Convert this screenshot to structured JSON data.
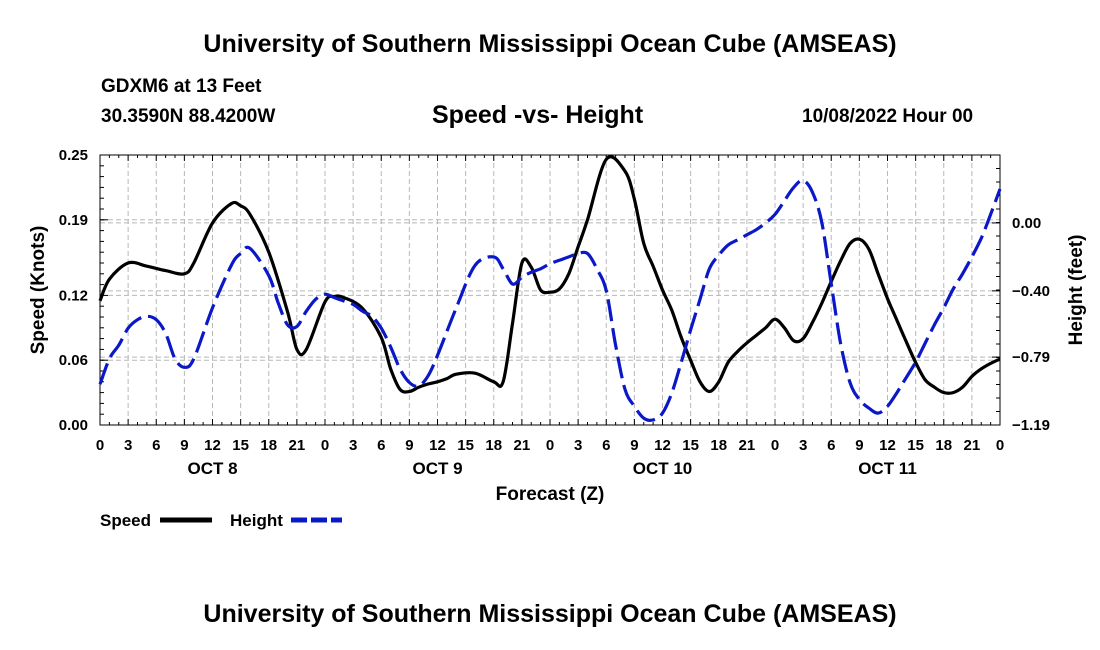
{
  "header": {
    "title": "University of Southern Mississippi Ocean Cube (AMSEAS)",
    "station": "GDXM6 at 13 Feet",
    "coords": "30.3590N  88.4200W",
    "subtitle": "Speed -vs- Height",
    "datetime": "10/08/2022 Hour 00"
  },
  "footer": {
    "title": "University of Southern Mississippi Ocean Cube (AMSEAS)"
  },
  "chart_data": {
    "type": "line",
    "title": "Speed -vs- Height",
    "xlabel": "Forecast (Z)",
    "ylabel": "Speed (Knots)",
    "y2label": "Height (feet)",
    "x_unit": "hours from 10/08/2022 00Z",
    "xlim": [
      0,
      96
    ],
    "ylim": [
      0,
      0.25
    ],
    "y2lim": [
      -1.19,
      0.4
    ],
    "grid": true,
    "x_ticks": [
      0,
      3,
      6,
      9,
      12,
      15,
      18,
      21,
      24,
      27,
      30,
      33,
      36,
      39,
      42,
      45,
      48,
      51,
      54,
      57,
      60,
      63,
      66,
      69,
      72,
      75,
      78,
      81,
      84,
      87,
      90,
      93,
      96
    ],
    "x_tick_labels": [
      "0",
      "3",
      "6",
      "9",
      "12",
      "15",
      "18",
      "21",
      "0",
      "3",
      "6",
      "9",
      "12",
      "15",
      "18",
      "21",
      "0",
      "3",
      "6",
      "9",
      "12",
      "15",
      "18",
      "21",
      "0",
      "3",
      "6",
      "9",
      "12",
      "15",
      "18",
      "21",
      "0"
    ],
    "day_labels": [
      {
        "label": "OCT 8",
        "hour": 12
      },
      {
        "label": "OCT 9",
        "hour": 36
      },
      {
        "label": "OCT 10",
        "hour": 60
      },
      {
        "label": "OCT 11",
        "hour": 84
      }
    ],
    "y_ticks": [
      0.0,
      0.06,
      0.12,
      0.19,
      0.25
    ],
    "y_tick_labels": [
      "0.00",
      "0.06",
      "0.12",
      "0.19",
      "0.25"
    ],
    "y2_ticks": [
      0.0,
      -0.4,
      -0.79,
      -1.19
    ],
    "y2_tick_labels": [
      "0.00",
      "−0.40",
      "−0.79",
      "−1.19"
    ],
    "legend": [
      {
        "label": "Speed",
        "color": "#000000",
        "dash": "solid"
      },
      {
        "label": "Height",
        "color": "#0b18c8",
        "dash": "dashed"
      }
    ],
    "legend_placement": "bottom-left",
    "series": [
      {
        "name": "Speed",
        "axis": "left",
        "color": "#000000",
        "dash": "solid",
        "x": [
          0,
          1,
          3,
          5,
          7,
          9,
          10,
          12,
          14,
          15,
          16,
          18,
          20,
          21,
          22,
          24,
          25,
          26,
          28,
          30,
          31,
          32,
          33,
          34,
          35,
          36,
          37,
          38,
          40,
          42,
          43,
          44,
          45,
          46,
          47,
          48,
          49,
          50,
          51,
          52,
          54,
          56,
          57,
          58,
          59,
          60,
          61,
          62,
          63,
          64,
          65,
          66,
          67,
          68,
          69,
          70,
          71,
          72,
          73,
          74,
          75,
          76,
          77,
          78,
          79,
          80,
          81,
          82,
          83,
          84,
          85,
          86,
          87,
          88,
          89,
          90,
          91,
          92,
          93,
          94,
          95,
          96
        ],
        "values": [
          0.115,
          0.135,
          0.15,
          0.147,
          0.143,
          0.14,
          0.15,
          0.187,
          0.205,
          0.203,
          0.195,
          0.16,
          0.105,
          0.07,
          0.07,
          0.114,
          0.119,
          0.118,
          0.108,
          0.081,
          0.052,
          0.033,
          0.031,
          0.035,
          0.038,
          0.04,
          0.043,
          0.047,
          0.048,
          0.04,
          0.04,
          0.094,
          0.15,
          0.146,
          0.125,
          0.123,
          0.126,
          0.14,
          0.165,
          0.19,
          0.246,
          0.235,
          0.209,
          0.168,
          0.147,
          0.125,
          0.106,
          0.081,
          0.06,
          0.04,
          0.031,
          0.04,
          0.058,
          0.068,
          0.076,
          0.083,
          0.09,
          0.098,
          0.09,
          0.078,
          0.08,
          0.095,
          0.113,
          0.133,
          0.152,
          0.168,
          0.172,
          0.163,
          0.14,
          0.117,
          0.097,
          0.077,
          0.058,
          0.042,
          0.035,
          0.03,
          0.03,
          0.035,
          0.045,
          0.052,
          0.057,
          0.061
        ]
      },
      {
        "name": "Height",
        "axis": "right",
        "color": "#0b18c8",
        "dash": "dashed",
        "x": [
          0,
          1,
          2,
          3,
          4,
          5,
          6,
          7,
          8,
          9,
          10,
          12,
          14,
          15,
          16,
          18,
          19,
          20,
          21,
          22,
          23,
          24,
          25,
          26,
          27,
          28,
          29,
          30,
          31,
          32,
          33,
          34,
          35,
          36,
          38,
          40,
          42,
          43,
          44,
          45,
          46,
          47,
          48,
          49,
          50,
          51,
          52,
          53,
          54,
          55,
          56,
          57,
          58,
          59,
          60,
          61,
          62,
          63,
          64,
          65,
          66,
          67,
          68,
          69,
          70,
          71,
          72,
          73,
          74,
          75,
          76,
          77,
          78,
          79,
          80,
          81,
          82,
          83,
          84,
          85,
          86,
          87,
          88,
          89,
          90,
          91,
          92,
          93,
          94,
          95,
          96
        ],
        "values": [
          -0.95,
          -0.8,
          -0.72,
          -0.62,
          -0.57,
          -0.55,
          -0.57,
          -0.65,
          -0.8,
          -0.85,
          -0.8,
          -0.5,
          -0.25,
          -0.18,
          -0.15,
          -0.31,
          -0.47,
          -0.6,
          -0.61,
          -0.52,
          -0.45,
          -0.42,
          -0.44,
          -0.46,
          -0.48,
          -0.52,
          -0.55,
          -0.62,
          -0.73,
          -0.86,
          -0.94,
          -0.96,
          -0.9,
          -0.78,
          -0.5,
          -0.25,
          -0.2,
          -0.27,
          -0.36,
          -0.32,
          -0.29,
          -0.27,
          -0.24,
          -0.22,
          -0.2,
          -0.18,
          -0.18,
          -0.27,
          -0.4,
          -0.72,
          -0.98,
          -1.08,
          -1.15,
          -1.16,
          -1.12,
          -1.0,
          -0.82,
          -0.63,
          -0.45,
          -0.27,
          -0.19,
          -0.13,
          -0.1,
          -0.07,
          -0.04,
          0.0,
          0.05,
          0.13,
          0.21,
          0.25,
          0.18,
          0.0,
          -0.36,
          -0.71,
          -0.94,
          -1.04,
          -1.09,
          -1.12,
          -1.08,
          -1.0,
          -0.91,
          -0.82,
          -0.71,
          -0.6,
          -0.5,
          -0.39,
          -0.3,
          -0.2,
          -0.09,
          0.05,
          0.2
        ]
      }
    ]
  }
}
